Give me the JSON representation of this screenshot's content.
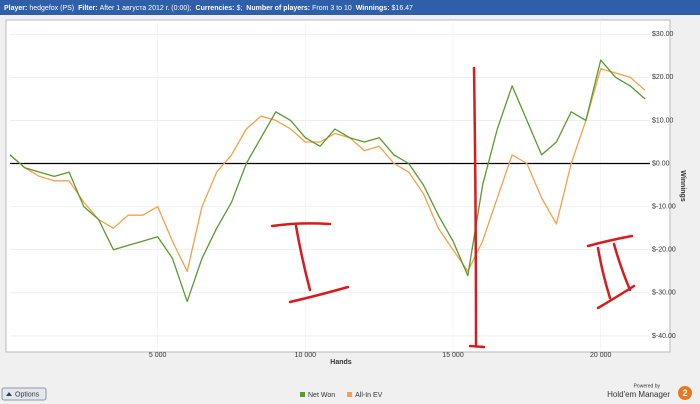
{
  "header": {
    "items": [
      {
        "label": "Player:",
        "value": "hedgefox (PS)"
      },
      {
        "label": "Filter:",
        "value": "After 1 августа 2012 г. (0:00);"
      },
      {
        "label": "Currencies:",
        "value": "$;"
      },
      {
        "label": "Number of players:",
        "value": "From 3 to 10"
      },
      {
        "label": "Winnings:",
        "value": "$16.47"
      }
    ]
  },
  "options_button": "Options",
  "branding": {
    "powered_by": "Powered by",
    "name": "Hold'em Manager",
    "version": "2"
  },
  "chart_data": {
    "type": "line",
    "x_label": "Hands",
    "y_label": "Winnings",
    "x": [
      0,
      500,
      1000,
      1500,
      2000,
      2500,
      3000,
      3500,
      4000,
      4500,
      5000,
      5500,
      6000,
      6500,
      7000,
      7500,
      8000,
      8500,
      9000,
      9500,
      10000,
      10500,
      11000,
      11500,
      12000,
      12500,
      13000,
      13500,
      14000,
      14500,
      15000,
      15500,
      16000,
      16500,
      17000,
      17500,
      18000,
      18500,
      19000,
      19500,
      20000,
      20500,
      21000,
      21500
    ],
    "series": [
      {
        "name": "Net Won",
        "color": "#5a9a2e",
        "values": [
          2,
          -1,
          -2,
          -3,
          -2,
          -10,
          -13,
          -20,
          -19,
          -18,
          -17,
          -22,
          -32,
          -22,
          -15,
          -9,
          0,
          6,
          12,
          10,
          6,
          4,
          8,
          6,
          5,
          6,
          2,
          0,
          -5,
          -12,
          -18,
          -26,
          -5,
          8,
          18,
          10,
          2,
          5,
          12,
          10,
          24,
          20,
          18,
          15
        ]
      },
      {
        "name": "All-In EV",
        "color": "#f5a04a",
        "values": [
          2,
          -1,
          -3,
          -4,
          -4,
          -9,
          -13,
          -15,
          -12,
          -12,
          -10,
          -18,
          -25,
          -10,
          -2,
          2,
          8,
          11,
          10,
          8,
          5,
          5,
          7,
          6,
          3,
          4,
          0,
          -2,
          -7,
          -15,
          -20,
          -25,
          -18,
          -8,
          2,
          0,
          -8,
          -14,
          0,
          10,
          22,
          21,
          20,
          17
        ]
      }
    ],
    "xlim": [
      0,
      21500
    ],
    "ylim": [
      -43.5,
      33.3
    ],
    "xticks": [
      {
        "value": 5000,
        "label": "5 000"
      },
      {
        "value": 10000,
        "label": "10 000"
      },
      {
        "value": 15000,
        "label": "15 000"
      },
      {
        "value": 20000,
        "label": "20 000"
      }
    ],
    "yticks": [
      {
        "value": -40,
        "label": "$-40.00"
      },
      {
        "value": -30,
        "label": "$-30.00"
      },
      {
        "value": -20,
        "label": "$-20.00"
      },
      {
        "value": -10,
        "label": "$-10.00"
      },
      {
        "value": 0,
        "label": "$0.00"
      },
      {
        "value": 10,
        "label": "$10.00"
      },
      {
        "value": 20,
        "label": "$20.00"
      },
      {
        "value": 30,
        "label": "$30.00"
      }
    ],
    "grid": true
  }
}
